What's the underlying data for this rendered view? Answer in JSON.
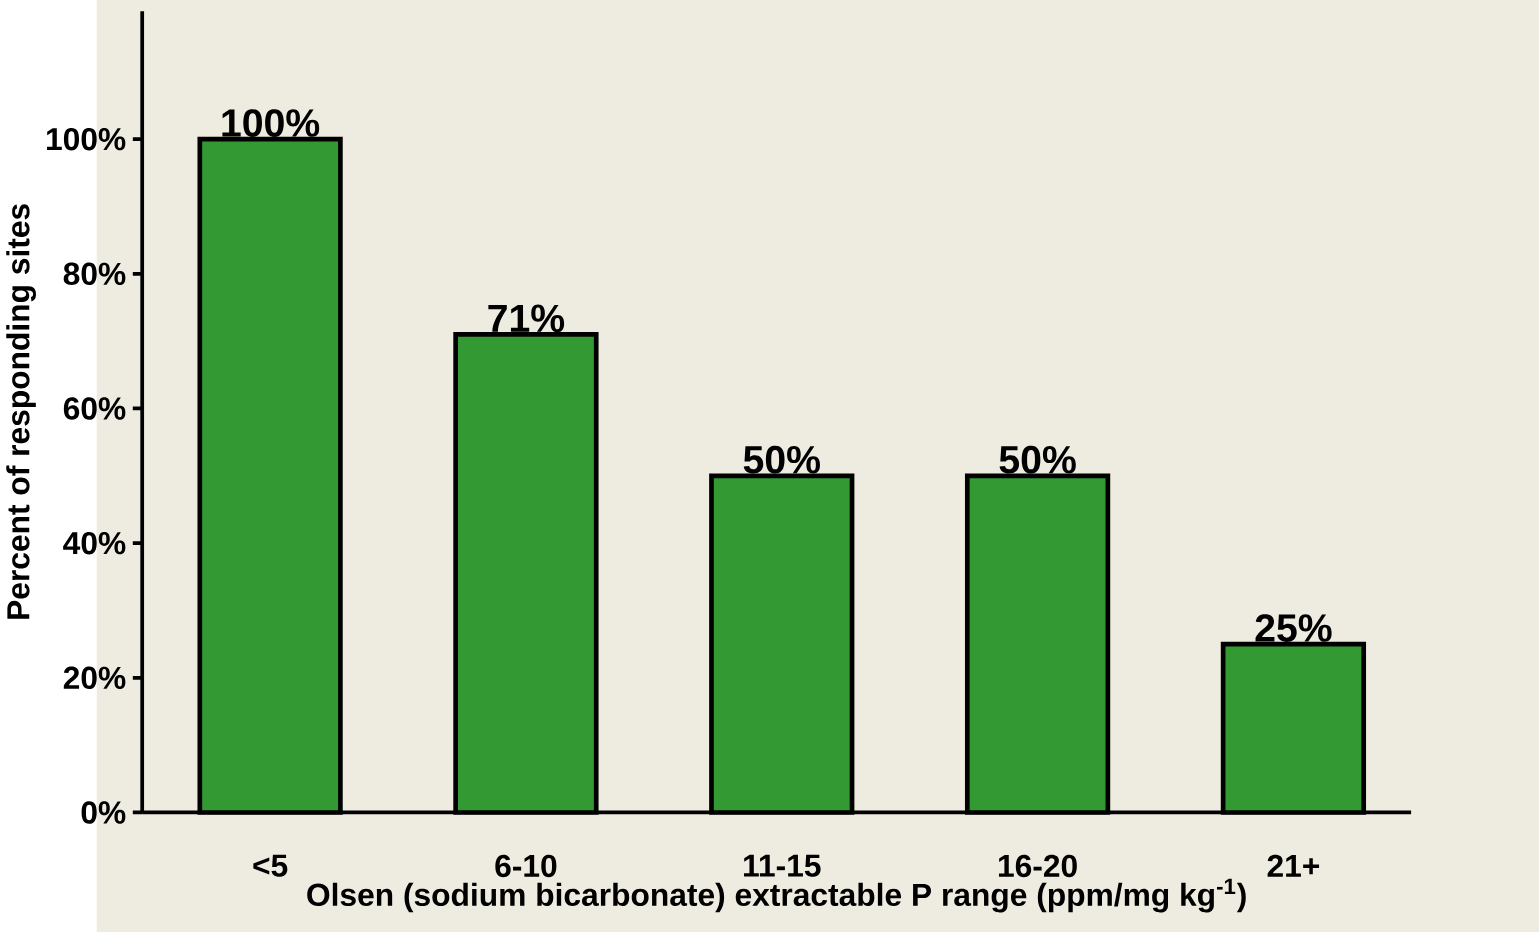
{
  "chart_data": {
    "type": "bar",
    "xlabel": "Olsen (sodium bicarbonate) extractable P range (ppm/mg kg$^{-1}$)",
    "ylabel": "Percent of responding sites",
    "categories": [
      "<5",
      "6-10",
      "11-15",
      "16-20",
      "21+"
    ],
    "values": [
      100,
      71,
      50,
      50,
      25
    ],
    "value_labels": [
      "100%",
      "71%",
      "50%",
      "50%",
      "25%"
    ],
    "color": "#339933",
    "ylim": [
      0,
      119
    ],
    "yticks": [
      {
        "value": 0,
        "label": "0%"
      },
      {
        "value": 20,
        "label": "20%"
      },
      {
        "value": 40,
        "label": "40%"
      },
      {
        "value": 60,
        "label": "60%"
      },
      {
        "value": 80,
        "label": "80%"
      },
      {
        "value": 100,
        "label": "100%"
      }
    ]
  }
}
